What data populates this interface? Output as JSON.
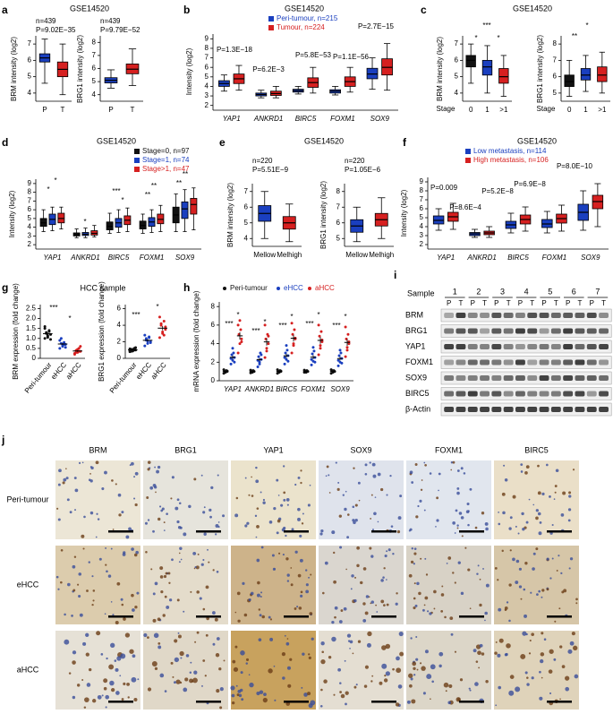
{
  "panel_labels": [
    "a",
    "b",
    "c",
    "d",
    "e",
    "f",
    "g",
    "h",
    "i",
    "j"
  ],
  "chart_data": [
    {
      "type": "box",
      "title": "GSE14520",
      "ylabel": "BRM intensity (log2)",
      "categories": [
        "P",
        "T"
      ],
      "ylim": [
        3.5,
        7.5
      ],
      "yticks": [
        4,
        5,
        6,
        7
      ],
      "annotations": [
        "n=439",
        "P=9.02E−35"
      ],
      "series": [
        {
          "colors": [
            "#1a3fbf",
            "#d62020"
          ],
          "whisker_low": [
            4.6,
            3.9
          ],
          "q1": [
            5.9,
            5.0
          ],
          "median": [
            6.15,
            5.45
          ],
          "q3": [
            6.4,
            5.9
          ],
          "whisker_high": [
            7.3,
            7.0
          ]
        }
      ]
    },
    {
      "type": "box",
      "ylabel": "BRG1 intensity (log2)",
      "categories": [
        "P",
        "T"
      ],
      "ylim": [
        3.5,
        8.5
      ],
      "yticks": [
        4,
        5,
        6,
        7,
        8
      ],
      "annotations": [
        "n=439",
        "P=9.79E−52"
      ],
      "series": [
        {
          "colors": [
            "#1a3fbf",
            "#d62020"
          ],
          "whisker_low": [
            4.5,
            4.7
          ],
          "q1": [
            4.9,
            5.6
          ],
          "median": [
            5.1,
            5.95
          ],
          "q3": [
            5.3,
            6.35
          ],
          "whisker_high": [
            5.9,
            7.5
          ]
        }
      ]
    },
    {
      "type": "box",
      "title": "GSE14520",
      "ylabel": "Intensity (log2)",
      "categories": [
        "YAP1",
        "ANKRD1",
        "BIRC5",
        "FOXM1",
        "SOX9"
      ],
      "ylim": [
        1.5,
        9.5
      ],
      "yticks": [
        2,
        3,
        4,
        5,
        6,
        7,
        8,
        9
      ],
      "annotations": [
        "P=1.3E−18",
        "P=6.2E−3",
        "P=5.8E−53",
        "P=1.1E−56",
        "P=2.7E−15"
      ],
      "series": [
        {
          "name": "Peri-tumour, n=215",
          "color": "#1a3fbf",
          "whisker_low": [
            3.5,
            2.8,
            3.2,
            3.1,
            3.7
          ],
          "q1": [
            4.0,
            3.0,
            3.4,
            3.3,
            4.8
          ],
          "median": [
            4.3,
            3.15,
            3.55,
            3.5,
            5.3
          ],
          "q3": [
            4.6,
            3.3,
            3.7,
            3.65,
            5.9
          ],
          "whisker_high": [
            5.2,
            3.6,
            4.0,
            4.0,
            7.0
          ]
        },
        {
          "name": "Tumour, n=224",
          "color": "#d62020",
          "whisker_low": [
            3.6,
            2.8,
            3.3,
            3.4,
            3.6
          ],
          "q1": [
            4.3,
            3.05,
            3.9,
            4.0,
            5.2
          ],
          "median": [
            4.8,
            3.25,
            4.4,
            4.5,
            6.0
          ],
          "q3": [
            5.3,
            3.5,
            4.9,
            5.0,
            6.9
          ],
          "whisker_high": [
            6.2,
            4.0,
            6.0,
            6.0,
            8.5
          ]
        }
      ]
    },
    {
      "type": "box",
      "title": "GSE14520",
      "ylabel": "BRM intensity (log2)",
      "xlabel": "Stage",
      "categories": [
        "0",
        "1",
        ">1"
      ],
      "ylim": [
        3.5,
        7.5
      ],
      "yticks": [
        4,
        5,
        6,
        7
      ],
      "annotations": [
        "***",
        "*",
        "*"
      ],
      "series": [
        {
          "colors": [
            "#111111",
            "#1a3fbf",
            "#d62020"
          ],
          "whisker_low": [
            4.6,
            4.0,
            3.8
          ],
          "q1": [
            5.6,
            5.1,
            4.6
          ],
          "median": [
            6.0,
            5.6,
            5.0
          ],
          "q3": [
            6.3,
            6.0,
            5.5
          ],
          "whisker_high": [
            7.0,
            6.9,
            6.3
          ]
        }
      ]
    },
    {
      "type": "box",
      "ylabel": "BRG1 intensity (log2)",
      "xlabel": "Stage",
      "categories": [
        "0",
        "1",
        ">1"
      ],
      "ylim": [
        4.5,
        8.5
      ],
      "yticks": [
        5,
        6,
        7,
        8
      ],
      "annotations": [
        "*",
        "**"
      ],
      "series": [
        {
          "colors": [
            "#111111",
            "#1a3fbf",
            "#d62020"
          ],
          "whisker_low": [
            4.8,
            5.1,
            5.0
          ],
          "q1": [
            5.4,
            5.8,
            5.7
          ],
          "median": [
            5.7,
            6.1,
            6.1
          ],
          "q3": [
            6.1,
            6.5,
            6.6
          ],
          "whisker_high": [
            7.0,
            7.3,
            7.5
          ]
        }
      ]
    },
    {
      "type": "box",
      "title": "GSE14520",
      "ylabel": "Intensity (log2)",
      "categories": [
        "YAP1",
        "ANKRD1",
        "BIRC5",
        "FOXM1",
        "SOX9"
      ],
      "ylim": [
        1.5,
        9.5
      ],
      "yticks": [
        2,
        3,
        4,
        5,
        6,
        7,
        8,
        9
      ],
      "annotations": [
        "*",
        "*",
        "*",
        "***",
        "*",
        "**",
        "**",
        "**",
        "**"
      ],
      "series": [
        {
          "name": "Stage=0, n=97",
          "color": "#111111",
          "whisker_low": [
            3.5,
            2.8,
            3.3,
            3.3,
            3.5
          ],
          "q1": [
            4.1,
            3.0,
            3.7,
            3.8,
            4.5
          ],
          "median": [
            4.5,
            3.15,
            4.1,
            4.2,
            5.4
          ],
          "q3": [
            5.0,
            3.35,
            4.6,
            4.7,
            6.3
          ],
          "whisker_high": [
            6.0,
            3.8,
            5.6,
            5.5,
            7.8
          ]
        },
        {
          "name": "Stage=1, n=74",
          "color": "#1a3fbf",
          "whisker_low": [
            3.6,
            2.8,
            3.4,
            3.4,
            3.5
          ],
          "q1": [
            4.3,
            3.05,
            4.0,
            4.1,
            5.0
          ],
          "median": [
            4.9,
            3.2,
            4.5,
            4.6,
            6.1
          ],
          "q3": [
            5.5,
            3.4,
            5.0,
            5.1,
            6.9
          ],
          "whisker_high": [
            6.3,
            3.9,
            6.0,
            6.0,
            8.3
          ]
        },
        {
          "name": "Stage>1, n=47",
          "color": "#d62020",
          "whisker_low": [
            3.8,
            2.9,
            3.5,
            3.5,
            3.7
          ],
          "q1": [
            4.5,
            3.1,
            4.3,
            4.4,
            5.5
          ],
          "median": [
            5.0,
            3.3,
            4.8,
            4.9,
            6.6
          ],
          "q3": [
            5.6,
            3.6,
            5.3,
            5.5,
            7.3
          ],
          "whisker_high": [
            6.3,
            4.2,
            6.2,
            6.5,
            8.5
          ]
        }
      ]
    },
    {
      "type": "box",
      "title": "GSE14520",
      "ylabel": "BRM intensity (log2)",
      "categories": [
        "Mellow",
        "Melhigh"
      ],
      "ylim": [
        3.5,
        7.5
      ],
      "yticks": [
        4,
        5,
        6,
        7
      ],
      "annotations": [
        "n=220",
        "P=5.51E−9"
      ],
      "series": [
        {
          "colors": [
            "#1a3fbf",
            "#d62020"
          ],
          "whisker_low": [
            4.0,
            3.8
          ],
          "q1": [
            5.1,
            4.6
          ],
          "median": [
            5.6,
            5.0
          ],
          "q3": [
            6.1,
            5.4
          ],
          "whisker_high": [
            7.0,
            6.2
          ]
        }
      ]
    },
    {
      "type": "box",
      "ylabel": "BRG1 intensity (log2)",
      "categories": [
        "Mellow",
        "Melhigh"
      ],
      "ylim": [
        4.5,
        8.5
      ],
      "yticks": [
        5,
        6,
        7,
        8
      ],
      "annotations": [
        "n=220",
        "P=1.05E−6"
      ],
      "series": [
        {
          "colors": [
            "#1a3fbf",
            "#d62020"
          ],
          "whisker_low": [
            4.8,
            5.0
          ],
          "q1": [
            5.4,
            5.8
          ],
          "median": [
            5.8,
            6.2
          ],
          "q3": [
            6.2,
            6.6
          ],
          "whisker_high": [
            7.0,
            7.6
          ]
        }
      ]
    },
    {
      "type": "box",
      "title": "GSE14520",
      "ylabel": "Intensity (log2)",
      "categories": [
        "YAP1",
        "ANKRD1",
        "BIRC5",
        "FOXM1",
        "SOX9"
      ],
      "ylim": [
        1.5,
        9.5
      ],
      "yticks": [
        2,
        3,
        4,
        5,
        6,
        7,
        8,
        9
      ],
      "annotations": [
        "P=0.009",
        "P=8.6E−4",
        "P=5.2E−8",
        "P=6.9E−8",
        "P=8.0E−10"
      ],
      "series": [
        {
          "name": "Low metastasis, n=114",
          "color": "#1a3fbf",
          "whisker_low": [
            3.6,
            2.8,
            3.3,
            3.3,
            3.6
          ],
          "q1": [
            4.3,
            3.0,
            3.8,
            3.9,
            4.7
          ],
          "median": [
            4.7,
            3.2,
            4.2,
            4.3,
            5.6
          ],
          "q3": [
            5.2,
            3.35,
            4.6,
            4.8,
            6.5
          ],
          "whisker_high": [
            6.0,
            3.7,
            5.5,
            5.7,
            8.0
          ]
        },
        {
          "name": "High metastasis, n=106",
          "color": "#d62020",
          "whisker_low": [
            3.7,
            2.8,
            3.5,
            3.5,
            4.0
          ],
          "q1": [
            4.6,
            3.1,
            4.3,
            4.4,
            6.0
          ],
          "median": [
            5.1,
            3.3,
            4.8,
            4.9,
            6.8
          ],
          "q3": [
            5.6,
            3.5,
            5.3,
            5.4,
            7.5
          ],
          "whisker_high": [
            6.6,
            4.0,
            6.2,
            6.4,
            8.8
          ]
        }
      ]
    },
    {
      "type": "dot",
      "title": "HCC sample",
      "ylabel": "BRM expression (fold change)",
      "categories": [
        "Peri-tumour",
        "eHCC",
        "aHCC"
      ],
      "ylim": [
        0,
        2.7
      ],
      "yticks": [
        0,
        0.5,
        {
          "value": 1,
          "label": "1.0"
        },
        1.5,
        {
          "value": 2,
          "label": "2.0"
        },
        2.5
      ],
      "annotations": [
        "***",
        "*"
      ],
      "series": [
        {
          "colors": [
            "#111111",
            "#1a3fbf",
            "#d62020"
          ],
          "points": [
            [
              1.0,
              1.1,
              1.2,
              1.3,
              1.4,
              1.5,
              1.15,
              0.95,
              1.25,
              1.35,
              1.6,
              1.05
            ],
            [
              0.5,
              0.6,
              0.7,
              0.75,
              0.8,
              0.9,
              0.65,
              0.55,
              1.0,
              0.7
            ],
            [
              0.2,
              0.3,
              0.35,
              0.4,
              0.5,
              0.25,
              0.45,
              0.6,
              0.3,
              0.35
            ]
          ],
          "mean": [
            1.24,
            0.72,
            0.37
          ],
          "sem": [
            0.05,
            0.05,
            0.04
          ]
        }
      ]
    },
    {
      "type": "dot",
      "ylabel": "BRG1 expression (fold change)",
      "categories": [
        "Peri-tumour",
        "eHCC",
        "aHCC"
      ],
      "ylim": [
        0,
        6.5
      ],
      "yticks": [
        0,
        2,
        4,
        6
      ],
      "annotations": [
        "***",
        "*"
      ],
      "series": [
        {
          "colors": [
            "#111111",
            "#1a3fbf",
            "#d62020"
          ],
          "points": [
            [
              0.8,
              0.9,
              1.0,
              1.1,
              1.2,
              0.95,
              1.05,
              1.3,
              0.85,
              1.0,
              1.15,
              0.9
            ],
            [
              1.5,
              1.8,
              2.0,
              2.2,
              2.5,
              2.8,
              2.1,
              1.9,
              2.4,
              2.6
            ],
            [
              2.5,
              3.0,
              3.5,
              4.0,
              4.5,
              5.0,
              3.2,
              3.8,
              4.2,
              2.8
            ]
          ],
          "mean": [
            1.02,
            2.18,
            3.65
          ],
          "sem": [
            0.04,
            0.13,
            0.25
          ]
        }
      ]
    },
    {
      "type": "dot",
      "ylabel": "mRNA expression (fold change)",
      "categories": [
        "YAP1",
        "ANKRD1",
        "BIRC5",
        "FOXM1",
        "SOX9"
      ],
      "ylim": [
        0,
        8.5
      ],
      "yticks": [
        0,
        2,
        4,
        6,
        8
      ],
      "annotations": [
        "***",
        "*",
        "***",
        "*",
        "***",
        "*",
        "***",
        "*",
        "***",
        "*"
      ],
      "series": [
        {
          "name": "Peri-tumour",
          "color": "#111111",
          "points": [
            [
              0.8,
              0.9,
              1.0,
              1.0,
              1.1,
              1.2,
              0.95,
              1.05
            ],
            [
              0.85,
              0.9,
              1.0,
              1.05,
              1.1,
              1.15,
              0.95,
              1.0
            ],
            [
              0.8,
              0.95,
              1.0,
              1.0,
              1.1,
              1.2,
              0.9,
              1.05
            ],
            [
              0.9,
              0.9,
              1.0,
              1.05,
              1.1,
              1.15,
              0.95,
              1.0
            ],
            [
              0.8,
              0.9,
              1.0,
              1.1,
              1.1,
              1.2,
              0.95,
              1.0
            ]
          ],
          "mean": [
            1.0,
            1.0,
            1.0,
            1.0,
            1.0
          ],
          "sem": [
            0.04,
            0.04,
            0.04,
            0.03,
            0.04
          ]
        },
        {
          "name": "eHCC",
          "color": "#1a3fbf",
          "points": [
            [
              1.8,
              2.2,
              2.5,
              2.8,
              3.0,
              2.4,
              3.5,
              2.0
            ],
            [
              1.5,
              2.0,
              2.3,
              2.6,
              3.0,
              2.2,
              1.8,
              2.8
            ],
            [
              1.8,
              2.3,
              2.7,
              3.0,
              3.3,
              2.5,
              3.8,
              2.1
            ],
            [
              1.7,
              2.1,
              2.5,
              2.9,
              3.2,
              2.3,
              3.6,
              2.0
            ],
            [
              1.6,
              2.0,
              2.4,
              2.7,
              3.0,
              2.2,
              3.3,
              1.9
            ]
          ],
          "mean": [
            2.53,
            2.28,
            2.69,
            2.54,
            2.39
          ],
          "sem": [
            0.19,
            0.17,
            0.22,
            0.22,
            0.2
          ]
        },
        {
          "name": "aHCC",
          "color": "#d62020",
          "points": [
            [
              3.0,
              4.0,
              4.5,
              5.0,
              5.5,
              6.0,
              6.5,
              4.2
            ],
            [
              2.5,
              3.5,
              4.0,
              4.5,
              5.0,
              6.0,
              3.2,
              4.8
            ],
            [
              3.0,
              3.8,
              4.5,
              5.0,
              5.5,
              6.2,
              4.0,
              4.6
            ],
            [
              2.8,
              3.5,
              4.2,
              4.8,
              5.3,
              6.0,
              3.8,
              4.4
            ],
            [
              2.6,
              3.3,
              4.0,
              4.5,
              5.0,
              5.8,
              3.6,
              4.2
            ]
          ],
          "mean": [
            4.84,
            4.19,
            4.58,
            4.35,
            4.13
          ],
          "sem": [
            0.4,
            0.4,
            0.37,
            0.37,
            0.36
          ]
        }
      ]
    }
  ],
  "western_blot": {
    "sample_label": "Sample",
    "samples": [
      "1",
      "2",
      "3",
      "4",
      "5",
      "6",
      "7"
    ],
    "lanes": [
      "P",
      "T"
    ],
    "proteins": [
      "BRM",
      "BRG1",
      "YAP1",
      "FOXM1",
      "SOX9",
      "BIRC5",
      "β-Actin"
    ]
  },
  "ihc": {
    "columns": [
      "BRM",
      "BRG1",
      "YAP1",
      "SOX9",
      "FOXM1",
      "BIRC5"
    ],
    "rows": [
      "Peri-tumour",
      "eHCC",
      "aHCC"
    ]
  }
}
